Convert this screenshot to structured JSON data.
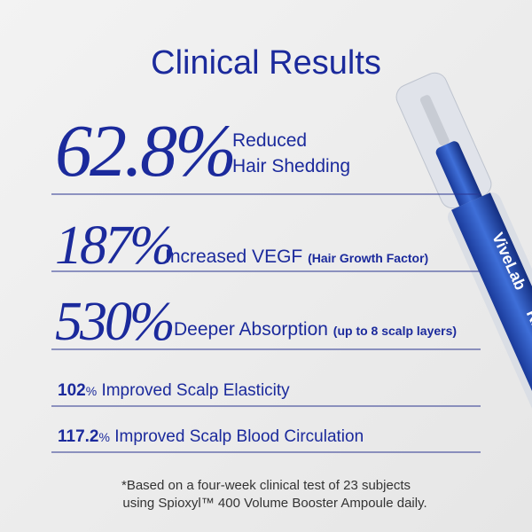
{
  "header": {
    "title": "Clinical Results"
  },
  "stats": [
    {
      "value": "62.8%",
      "label_lines": [
        "Reduced",
        "Hair Shedding"
      ]
    },
    {
      "value": "187%",
      "label": "Increased VEGF",
      "note": "(Hair Growth Factor)"
    },
    {
      "value": "530%",
      "label": "Deeper Absorption",
      "note": "(up to 8 scalp layers)"
    },
    {
      "value": "102",
      "unit": "%",
      "label": "Improved Scalp Elasticity"
    },
    {
      "value": "117.2",
      "unit": "%",
      "label": "Improved Scalp Blood Circulation"
    }
  ],
  "product": {
    "brand": "ViveLab",
    "text": "RE"
  },
  "footnote": [
    "*Based on a four-week clinical test of 23 subjects",
    "using Spioxyl™ 400 Volume Booster Ampoule daily."
  ]
}
